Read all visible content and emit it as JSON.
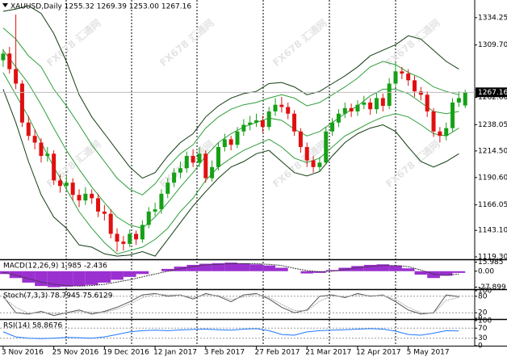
{
  "chart_data": [
    {
      "type": "candlestick",
      "title": "XAUUSD,Daily  1255.32 1269.39 1253.00 1267.16",
      "watermark": "FX678 汇通网",
      "up_color": "#16a016",
      "down_color": "#e01010",
      "open": [
        1296,
        1302,
        1288,
        1275,
        1240,
        1228,
        1222,
        1210,
        1212,
        1188,
        1183,
        1186,
        1175,
        1170,
        1176,
        1172,
        1160,
        1158,
        1140,
        1133,
        1131,
        1140,
        1135,
        1148,
        1160,
        1162,
        1176,
        1186,
        1195,
        1199,
        1210,
        1204,
        1212,
        1190,
        1200,
        1218,
        1225,
        1220,
        1232,
        1238,
        1240,
        1242,
        1236,
        1250,
        1256,
        1254,
        1248,
        1232,
        1218,
        1206,
        1200,
        1204,
        1232,
        1240,
        1248,
        1253,
        1250,
        1256,
        1258,
        1252,
        1262,
        1255,
        1275,
        1286,
        1284,
        1278,
        1268,
        1265,
        1250,
        1232,
        1228,
        1235,
        1258,
        1255.32
      ],
      "high": [
        1306,
        1308,
        1337,
        1278,
        1246,
        1234,
        1226,
        1218,
        1215,
        1193,
        1192,
        1190,
        1180,
        1182,
        1180,
        1176,
        1166,
        1162,
        1145,
        1138,
        1144,
        1143,
        1152,
        1164,
        1168,
        1180,
        1190,
        1199,
        1205,
        1214,
        1216,
        1218,
        1215,
        1206,
        1222,
        1230,
        1228,
        1236,
        1243,
        1246,
        1248,
        1246,
        1254,
        1262,
        1263,
        1258,
        1251,
        1235,
        1222,
        1210,
        1209,
        1236,
        1244,
        1252,
        1258,
        1257,
        1260,
        1264,
        1262,
        1267,
        1266,
        1280,
        1294,
        1290,
        1288,
        1282,
        1272,
        1268,
        1253,
        1236,
        1240,
        1262,
        1268,
        1269.39
      ],
      "low": [
        1290,
        1284,
        1270,
        1236,
        1224,
        1216,
        1204,
        1205,
        1184,
        1177,
        1178,
        1170,
        1164,
        1166,
        1167,
        1155,
        1152,
        1136,
        1124,
        1125,
        1128,
        1130,
        1132,
        1145,
        1156,
        1158,
        1172,
        1182,
        1190,
        1195,
        1200,
        1200,
        1186,
        1187,
        1197,
        1214,
        1215,
        1217,
        1228,
        1233,
        1236,
        1231,
        1233,
        1246,
        1249,
        1243,
        1228,
        1213,
        1200,
        1195,
        1196,
        1202,
        1228,
        1236,
        1244,
        1245,
        1246,
        1252,
        1247,
        1248,
        1250,
        1252,
        1272,
        1279,
        1273,
        1263,
        1260,
        1245,
        1227,
        1222,
        1224,
        1232,
        1254,
        1253
      ],
      "close": [
        1302,
        1288,
        1275,
        1240,
        1228,
        1222,
        1210,
        1212,
        1188,
        1183,
        1186,
        1175,
        1170,
        1176,
        1172,
        1160,
        1158,
        1140,
        1133,
        1131,
        1140,
        1135,
        1148,
        1160,
        1162,
        1176,
        1186,
        1195,
        1199,
        1210,
        1204,
        1212,
        1190,
        1200,
        1218,
        1225,
        1220,
        1232,
        1238,
        1240,
        1242,
        1236,
        1250,
        1256,
        1254,
        1248,
        1232,
        1218,
        1206,
        1200,
        1204,
        1232,
        1240,
        1248,
        1253,
        1250,
        1256,
        1258,
        1252,
        1262,
        1255,
        1275,
        1286,
        1284,
        1278,
        1268,
        1265,
        1250,
        1232,
        1228,
        1235,
        1258,
        1262,
        1267.16
      ],
      "bands": {
        "x": [
          0,
          2,
          4,
          6,
          8,
          10,
          12,
          14,
          16,
          18,
          20,
          22,
          24,
          26,
          28,
          30,
          32,
          34,
          36,
          38,
          40,
          42,
          44,
          46,
          48,
          50,
          52,
          54,
          56,
          58,
          60,
          62,
          64,
          66,
          68,
          70,
          72
        ],
        "series": [
          {
            "color": "#123d12",
            "values": [
              1340,
              1342,
              1345,
              1338,
              1320,
              1295,
              1265,
              1245,
              1230,
              1215,
              1200,
              1190,
              1195,
              1210,
              1222,
              1230,
              1245,
              1255,
              1262,
              1266,
              1268,
              1275,
              1276,
              1272,
              1265,
              1268,
              1275,
              1282,
              1290,
              1300,
              1305,
              1310,
              1318,
              1315,
              1305,
              1295,
              1288
            ]
          },
          {
            "color": "#123d12",
            "values": [
              1270,
              1240,
              1205,
              1175,
              1155,
              1145,
              1130,
              1128,
              1122,
              1120,
              1121,
              1124,
              1120,
              1135,
              1150,
              1165,
              1178,
              1190,
              1200,
              1205,
              1212,
              1215,
              1205,
              1195,
              1192,
              1196,
              1210,
              1222,
              1230,
              1235,
              1238,
              1232,
              1218,
              1205,
              1200,
              1205,
              1212
            ]
          },
          {
            "color": "#2e9e3a",
            "values": [
              1325,
              1315,
              1300,
              1290,
              1270,
              1255,
              1238,
              1220,
              1205,
              1190,
              1180,
              1175,
              1185,
              1200,
              1212,
              1220,
              1235,
              1245,
              1252,
              1256,
              1258,
              1262,
              1265,
              1262,
              1255,
              1258,
              1265,
              1272,
              1280,
              1290,
              1295,
              1292,
              1285,
              1280,
              1272,
              1268,
              1265
            ]
          },
          {
            "color": "#2e9e3a",
            "values": [
              1305,
              1290,
              1275,
              1256,
              1235,
              1215,
              1198,
              1182,
              1168,
              1155,
              1148,
              1145,
              1155,
              1168,
              1182,
              1195,
              1210,
              1222,
              1230,
              1236,
              1240,
              1244,
              1242,
              1234,
              1228,
              1232,
              1240,
              1248,
              1255,
              1264,
              1270,
              1270,
              1266,
              1258,
              1250,
              1248,
              1250
            ]
          },
          {
            "color": "#2e9e3a",
            "values": [
              1285,
              1265,
              1245,
              1222,
              1200,
              1180,
              1160,
              1145,
              1132,
              1122,
              1125,
              1128,
              1135,
              1145,
              1160,
              1172,
              1188,
              1200,
              1208,
              1215,
              1220,
              1225,
              1218,
              1208,
              1204,
              1208,
              1218,
              1228,
              1234,
              1240,
              1245,
              1248,
              1245,
              1238,
              1230,
              1228,
              1235
            ]
          }
        ]
      },
      "last_price": 1267.16,
      "xlim": [
        -0.5,
        74.5
      ],
      "ylim": [
        1117.14,
        1348.68
      ],
      "yticks": [
        1334.25,
        {
          "value": 1309.7,
          "label": "1309.70"
        },
        {
          "value": 1262.6,
          "label": "1262.60"
        },
        1238.05,
        {
          "value": 1214.5,
          "label": "1214.50"
        },
        {
          "value": 1190.6,
          "label": "1190.60"
        },
        1166.05,
        {
          "value": 1143.1,
          "label": "1143.10"
        },
        {
          "value": 1119.3,
          "label": "1119.30"
        }
      ],
      "xticks": [
        {
          "value": 0,
          "label": "3 Nov 2016"
        },
        {
          "value": 8,
          "label": "25 Nov 2016"
        },
        {
          "value": 16,
          "label": "19 Dec 2016"
        },
        {
          "value": 24,
          "label": "12 Jan 2017"
        },
        {
          "value": 32,
          "label": "3 Feb 2017"
        },
        {
          "value": 40,
          "label": "27 Feb 2017"
        },
        {
          "value": 48,
          "label": "21 Mar 2017"
        },
        {
          "value": 56,
          "label": "12 Apr 2017"
        },
        {
          "value": 64,
          "label": "5 May 2017"
        }
      ]
    },
    {
      "type": "bar",
      "title": "MACD(12,26,9) 1.985 -2.436",
      "color": "#9b30d0",
      "x": [
        0,
        2,
        4,
        6,
        8,
        10,
        12,
        14,
        16,
        18,
        20,
        22,
        24,
        26,
        28,
        30,
        32,
        34,
        36,
        38,
        40,
        42,
        44,
        46,
        48,
        50,
        52,
        54,
        56,
        58,
        60,
        62,
        64,
        66,
        68,
        70,
        72
      ],
      "values": [
        -5,
        -12,
        -20,
        -26,
        -28,
        -27,
        -26,
        -24,
        -20,
        -15,
        -10,
        -5,
        0,
        4,
        8,
        11,
        13,
        14,
        15,
        14,
        12,
        10,
        6,
        0,
        -4,
        -3,
        2,
        6,
        9,
        11,
        12,
        10,
        5,
        -6,
        -12,
        -8,
        -3
      ],
      "signal": {
        "color": "#333333",
        "values": [
          -2,
          -7,
          -13,
          -19,
          -23,
          -25,
          -26,
          -25,
          -23,
          -19,
          -15,
          -10,
          -5,
          0,
          4,
          8,
          11,
          12,
          13,
          13,
          13,
          12,
          10,
          5,
          1,
          -1,
          0,
          3,
          6,
          8,
          10,
          10,
          8,
          2,
          -5,
          -7,
          -5
        ]
      },
      "xlim": [
        -0.5,
        74.5
      ],
      "ylim": [
        -30,
        18
      ],
      "yticks": [
        15.985,
        {
          "value": 0,
          "label": "0.00"
        },
        -27.899
      ]
    },
    {
      "type": "line",
      "title": "Stoch(7,3,3) 78.7945 75.6129",
      "x": [
        0,
        2,
        4,
        6,
        8,
        10,
        12,
        14,
        16,
        18,
        20,
        22,
        24,
        26,
        28,
        30,
        32,
        34,
        36,
        38,
        40,
        42,
        44,
        46,
        48,
        50,
        52,
        54,
        56,
        58,
        60,
        62,
        64,
        66,
        68,
        70,
        72
      ],
      "series": [
        {
          "color": "#555555",
          "values": [
            80,
            20,
            15,
            25,
            10,
            20,
            30,
            15,
            25,
            40,
            60,
            85,
            90,
            80,
            85,
            70,
            90,
            80,
            60,
            85,
            90,
            70,
            40,
            20,
            30,
            80,
            85,
            75,
            90,
            80,
            85,
            60,
            30,
            15,
            20,
            85,
            78.79
          ]
        },
        {
          "color": "#aaaaaa",
          "values": [
            75,
            40,
            18,
            20,
            17,
            18,
            25,
            22,
            22,
            33,
            52,
            75,
            88,
            85,
            84,
            76,
            85,
            83,
            68,
            78,
            88,
            76,
            50,
            28,
            27,
            62,
            82,
            78,
            86,
            82,
            83,
            68,
            40,
            20,
            18,
            65,
            75.61
          ]
        }
      ],
      "xlim": [
        -0.5,
        74.5
      ],
      "ylim": [
        0,
        100
      ],
      "yticks": [
        100,
        80,
        20,
        0
      ]
    },
    {
      "type": "line",
      "title": "RSI(14) 58.8676",
      "x": [
        0,
        2,
        4,
        6,
        8,
        10,
        12,
        14,
        16,
        18,
        20,
        22,
        24,
        26,
        28,
        30,
        32,
        34,
        36,
        38,
        40,
        42,
        44,
        46,
        48,
        50,
        52,
        54,
        56,
        58,
        60,
        62,
        64,
        66,
        68,
        70,
        72
      ],
      "series": [
        {
          "color": "#1e78ff",
          "values": [
            55,
            35,
            30,
            28,
            30,
            33,
            32,
            30,
            35,
            45,
            55,
            60,
            62,
            60,
            63,
            65,
            66,
            64,
            62,
            66,
            68,
            60,
            45,
            42,
            55,
            60,
            62,
            64,
            66,
            68,
            66,
            58,
            45,
            42,
            50,
            60,
            58.87
          ]
        }
      ],
      "xlim": [
        -0.5,
        74.5
      ],
      "ylim": [
        0,
        100
      ],
      "yticks": [
        100,
        70,
        30,
        0
      ]
    }
  ]
}
